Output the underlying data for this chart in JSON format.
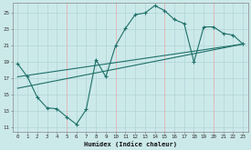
{
  "bg_color": "#cce9ea",
  "grid_color": "#b0d4d6",
  "red_grid_color": "#e8b4b4",
  "line_color": "#1e7068",
  "xlabel": "Humidex (Indice chaleur)",
  "xlim": [
    -0.5,
    23.5
  ],
  "ylim": [
    10.5,
    26.2
  ],
  "yticks": [
    11,
    13,
    15,
    17,
    19,
    21,
    23,
    25
  ],
  "xticks": [
    0,
    1,
    2,
    3,
    4,
    5,
    6,
    7,
    8,
    9,
    10,
    11,
    12,
    13,
    14,
    15,
    16,
    17,
    18,
    19,
    20,
    21,
    22,
    23
  ],
  "red_vlines": [
    5,
    10,
    15,
    20
  ],
  "line1_x": [
    0,
    1,
    2,
    3,
    4,
    5,
    6,
    7,
    8,
    9,
    10,
    11,
    12,
    13,
    14,
    15,
    16,
    17,
    18,
    19,
    20,
    21,
    22,
    23
  ],
  "line1_y": [
    18.8,
    17.2,
    14.7,
    13.4,
    13.3,
    12.3,
    11.4,
    13.2,
    19.3,
    17.2,
    21.0,
    23.1,
    24.8,
    25.0,
    25.9,
    25.3,
    24.2,
    23.7,
    19.0,
    23.3,
    23.3,
    22.5,
    22.3,
    21.2
  ],
  "line2_x": [
    0,
    23
  ],
  "line2_y": [
    15.8,
    21.2
  ],
  "line3_x": [
    0,
    23
  ],
  "line3_y": [
    17.2,
    21.2
  ]
}
